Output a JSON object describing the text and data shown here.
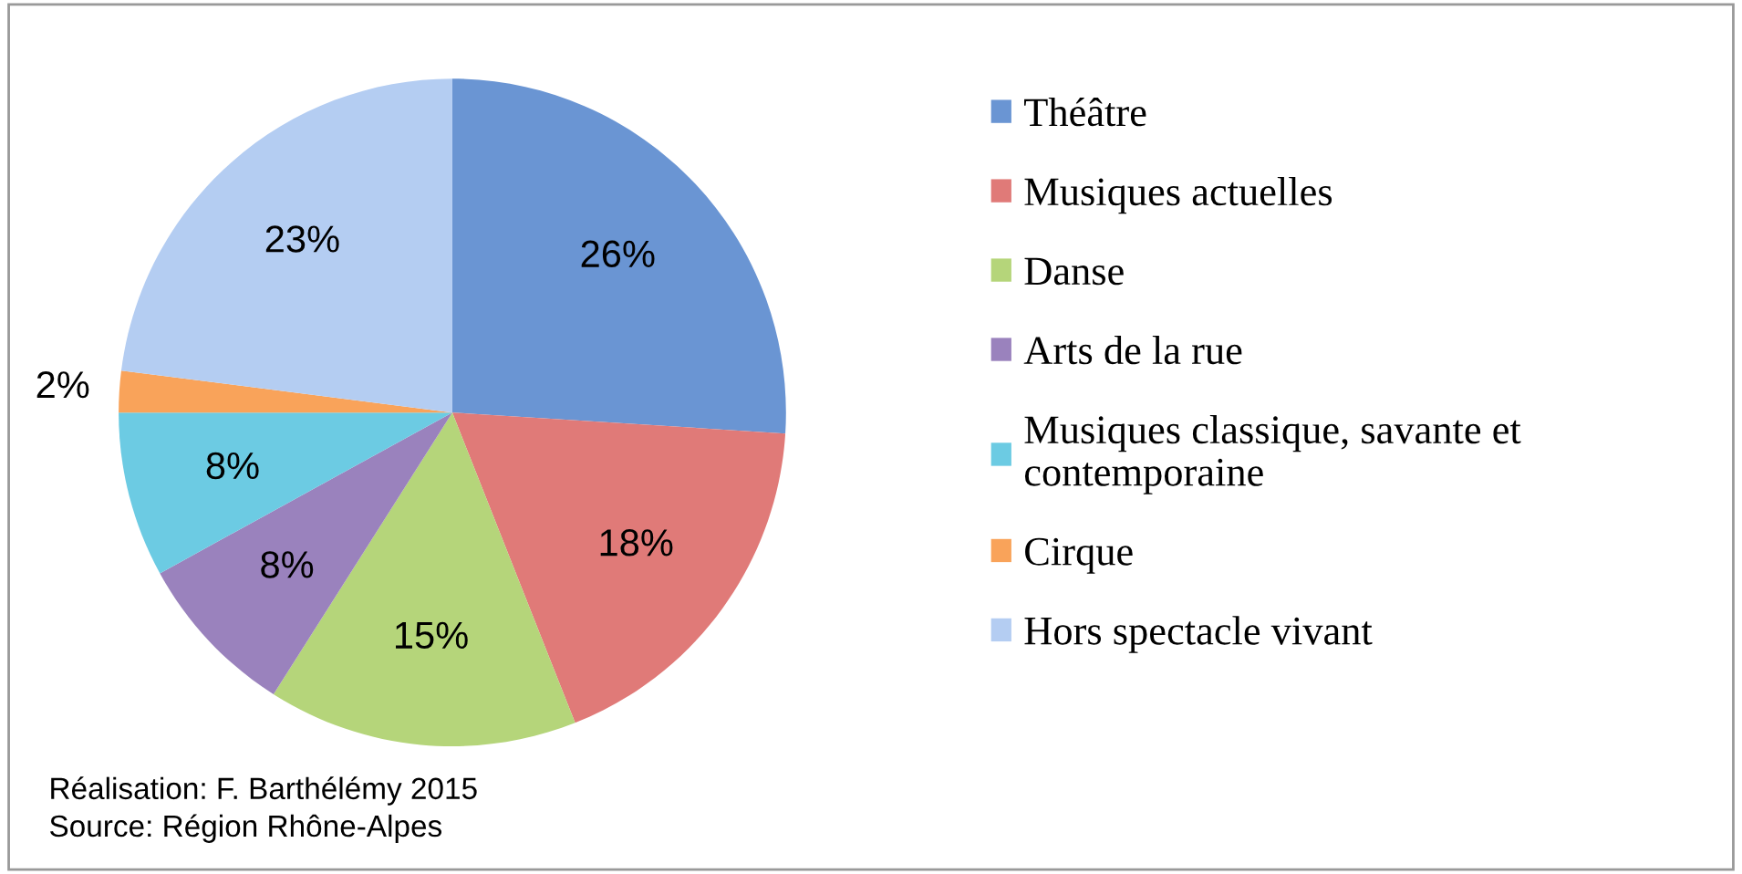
{
  "chart_data": {
    "type": "pie",
    "categories": [
      "Théâtre",
      "Musiques actuelles",
      "Danse",
      "Arts de la rue",
      "Musiques classique, savante et contemporaine",
      "Cirque",
      "Hors spectacle vivant"
    ],
    "values": [
      26,
      18,
      15,
      8,
      8,
      2,
      23
    ],
    "value_labels": [
      "26%",
      "18%",
      "15%",
      "8%",
      "8%",
      "2%",
      "23%"
    ],
    "colors": [
      "#6a95d3",
      "#e07a78",
      "#b5d57a",
      "#9a82bd",
      "#6ccbe3",
      "#f9a35a",
      "#b4cdf2"
    ],
    "legend": "right",
    "annotations": [
      "Réalisation: F. Barthélémy 2015",
      "Source: Région Rhône-Alpes"
    ]
  }
}
